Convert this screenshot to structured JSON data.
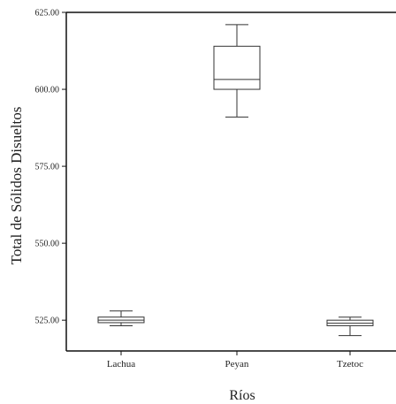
{
  "chart_data": {
    "type": "boxplot",
    "title": "",
    "xlabel": "Ríos",
    "ylabel": "Total de Sólidos Disueltos",
    "ylim": [
      515,
      625
    ],
    "yticks": [
      {
        "value": 525,
        "label": "525.00"
      },
      {
        "value": 550,
        "label": "550.00"
      },
      {
        "value": 575,
        "label": "575.00"
      },
      {
        "value": 600,
        "label": "600.00"
      },
      {
        "value": 625,
        "label": "625.00"
      }
    ],
    "categories": [
      "Lachua",
      "Peyan",
      "Tzetoc"
    ],
    "boxes": [
      {
        "category": "Lachua",
        "min": 523.2,
        "q1": 524.2,
        "median": 525.0,
        "q3": 526.0,
        "max": 528.0
      },
      {
        "category": "Peyan",
        "min": 591.0,
        "q1": 600.0,
        "median": 603.2,
        "q3": 614.0,
        "max": 621.0
      },
      {
        "category": "Tzetoc",
        "min": 520.0,
        "q1": 523.2,
        "median": 524.0,
        "q3": 525.0,
        "max": 526.0
      }
    ],
    "grid": false,
    "legend": "none",
    "colors": {
      "axis": "#111111",
      "box_fill": "#ffffff",
      "box_stroke": "#333333"
    }
  }
}
